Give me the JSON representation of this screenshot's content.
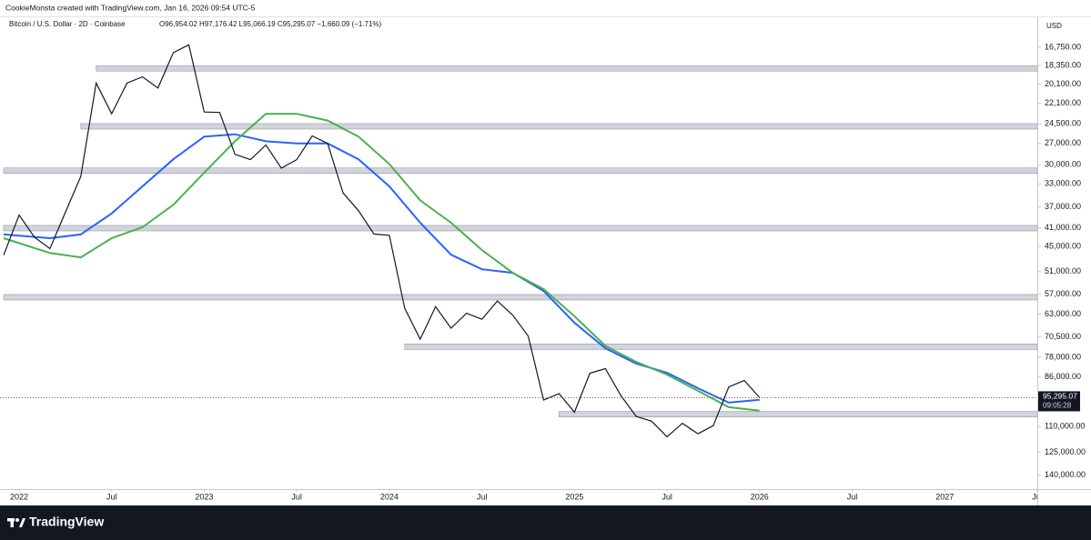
{
  "chart_data": {
    "type": "line",
    "header": "CookieMonsta created with TradingView.com, Jan 16, 2026 09:54 UTC-5",
    "symbol": "Bitcoin / U.S. Dollar · 2D · Coinbase",
    "ohlc": "O96,954.02 H97,176.42 L95,066.19 C95,295.07 −1,660.09 (−1.71%)",
    "currency": "USD",
    "brand": "TradingView",
    "color": "#131722",
    "x": [
      "2021-12",
      "2022-01",
      "2022-02",
      "2022-03",
      "2022-04",
      "2022-05",
      "2022-06",
      "2022-07",
      "2022-08",
      "2022-09",
      "2022-10",
      "2022-11",
      "2022-12",
      "2023-01",
      "2023-02",
      "2023-03",
      "2023-04",
      "2023-05",
      "2023-06",
      "2023-07",
      "2023-08",
      "2023-09",
      "2023-10",
      "2023-11",
      "2023-12",
      "2024-01",
      "2024-02",
      "2024-03",
      "2024-04",
      "2024-05",
      "2024-06",
      "2024-07",
      "2024-08",
      "2024-09",
      "2024-10",
      "2024-11",
      "2024-12",
      "2025-01",
      "2025-02",
      "2025-03",
      "2025-04",
      "2025-05",
      "2025-06",
      "2025-07",
      "2025-08",
      "2025-09",
      "2025-10",
      "2025-11",
      "2025-12",
      "2026-01"
    ],
    "values": [
      47000,
      38500,
      43000,
      45500,
      38000,
      31800,
      20000,
      23300,
      20000,
      19400,
      20500,
      17200,
      16550,
      23100,
      23150,
      28500,
      29250,
      27200,
      30500,
      29250,
      26000,
      27000,
      34500,
      37700,
      42300,
      42600,
      61200,
      71300,
      60700,
      67500,
      62700,
      64600,
      59000,
      63300,
      70200,
      96400,
      93400,
      102400,
      84400,
      82500,
      94200,
      104600,
      107100,
      115700,
      108200,
      114000,
      109500,
      90400,
      87500,
      95295.07
    ],
    "series": [
      {
        "color": "#2962ff",
        "x": [
          "2021-12",
          "2022-03",
          "2022-05",
          "2022-07",
          "2022-09",
          "2022-11",
          "2023-01",
          "2023-03",
          "2023-05",
          "2023-07",
          "2023-09",
          "2023-11",
          "2024-01",
          "2024-03",
          "2024-05",
          "2024-07",
          "2024-09",
          "2024-11",
          "2025-01",
          "2025-03",
          "2025-05",
          "2025-07",
          "2025-09",
          "2025-11",
          "2026-01"
        ],
        "values": [
          42400,
          43200,
          42400,
          38200,
          33400,
          29200,
          26100,
          25800,
          26700,
          27000,
          27000,
          29200,
          33400,
          40000,
          46900,
          50400,
          51300,
          56100,
          65700,
          74600,
          80500,
          84200,
          90900,
          97700,
          96300
        ]
      },
      {
        "color": "#4caf50",
        "x": [
          "2021-12",
          "2022-03",
          "2022-05",
          "2022-07",
          "2022-09",
          "2022-11",
          "2023-01",
          "2023-03",
          "2023-05",
          "2023-07",
          "2023-09",
          "2023-11",
          "2024-01",
          "2024-03",
          "2024-05",
          "2024-07",
          "2024-09",
          "2024-11",
          "2025-01",
          "2025-03",
          "2025-05",
          "2025-07",
          "2025-09",
          "2025-11",
          "2026-01"
        ],
        "values": [
          43200,
          46500,
          47500,
          43200,
          40900,
          36600,
          31200,
          26700,
          23300,
          23300,
          24100,
          26100,
          29900,
          35800,
          40000,
          45800,
          51300,
          55600,
          63600,
          73700,
          79800,
          85000,
          92100,
          99900,
          101700
        ]
      }
    ],
    "zones": {
      "color": "#d1d4dc",
      "items": [
        {
          "value": 18600,
          "start": "2022-06"
        },
        {
          "value": 24800,
          "start": "2022-05"
        },
        {
          "value": 30900,
          "start": "2021-12"
        },
        {
          "value": 41100,
          "start": "2021-12"
        },
        {
          "value": 57900,
          "start": "2021-12"
        },
        {
          "value": 74000,
          "start": "2024-02"
        },
        {
          "value": 103500,
          "start": "2024-12"
        }
      ]
    },
    "last_price": {
      "value": 95295.07,
      "label": "95,295.07"
    },
    "countdown": "09:05:28",
    "xlim": [
      "2021-12",
      "2027-07"
    ],
    "xticks": [
      {
        "value": "2022-01",
        "label": "2022"
      },
      {
        "value": "2022-07",
        "label": "Jul"
      },
      {
        "value": "2023-01",
        "label": "2023"
      },
      {
        "value": "2023-07",
        "label": "Jul"
      },
      {
        "value": "2024-01",
        "label": "2024"
      },
      {
        "value": "2024-07",
        "label": "Jul"
      },
      {
        "value": "2025-01",
        "label": "2025"
      },
      {
        "value": "2025-07",
        "label": "Jul"
      },
      {
        "value": "2026-01",
        "label": "2026"
      },
      {
        "value": "2026-07",
        "label": "Jul"
      },
      {
        "value": "2027-01",
        "label": "2027"
      },
      {
        "value": "2027-07",
        "label": "Jul"
      }
    ],
    "ylim": [
      14500,
      150000
    ],
    "log": true,
    "inverted": true,
    "yticks": [
      {
        "value": 16750,
        "label": "16,750.00"
      },
      {
        "value": 18350,
        "label": "18,350.00"
      },
      {
        "value": 20100,
        "label": "20,100.00"
      },
      {
        "value": 22100,
        "label": "22,100.00"
      },
      {
        "value": 24500,
        "label": "24,500.00"
      },
      {
        "value": 27000,
        "label": "27,000.00"
      },
      {
        "value": 30000,
        "label": "30,000.00"
      },
      {
        "value": 33000,
        "label": "33,000.00"
      },
      {
        "value": 37000,
        "label": "37,000.00"
      },
      {
        "value": 41000,
        "label": "41,000.00"
      },
      {
        "value": 45000,
        "label": "45,000.00"
      },
      {
        "value": 51000,
        "label": "51,000.00"
      },
      {
        "value": 57000,
        "label": "57,000.00"
      },
      {
        "value": 63000,
        "label": "63,000.00"
      },
      {
        "value": 70500,
        "label": "70,500.00"
      },
      {
        "value": 78000,
        "label": "78,000.00"
      },
      {
        "value": 86000,
        "label": "86,000.00"
      },
      {
        "value": 110000,
        "label": "110,000.00"
      },
      {
        "value": 125000,
        "label": "125,000.00"
      },
      {
        "value": 140000,
        "label": "140,000.00"
      }
    ]
  }
}
